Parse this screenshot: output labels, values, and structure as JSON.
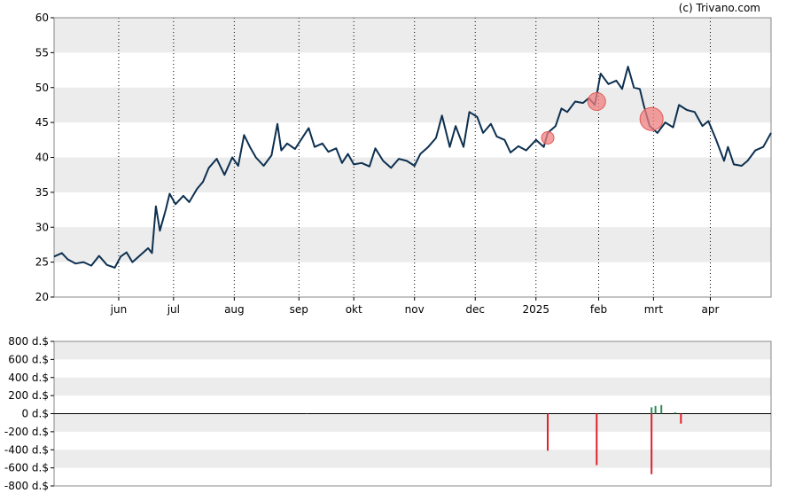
{
  "credit": "(c) Trivano.com",
  "chart_data": [
    {
      "type": "line",
      "panel": "price",
      "ylim": [
        20,
        60
      ],
      "y_ticks": [
        20,
        25,
        30,
        35,
        40,
        45,
        50,
        55,
        60
      ],
      "grid": true,
      "x_ticks": [
        {
          "label": "jun",
          "date": "2024-06-03"
        },
        {
          "label": "jul",
          "date": "2024-07-01"
        },
        {
          "label": "aug",
          "date": "2024-08-01"
        },
        {
          "label": "sep",
          "date": "2024-09-03"
        },
        {
          "label": "okt",
          "date": "2024-10-01"
        },
        {
          "label": "nov",
          "date": "2024-11-01"
        },
        {
          "label": "dec",
          "date": "2024-12-02"
        },
        {
          "label": "2025",
          "date": "2025-01-02"
        },
        {
          "label": "feb",
          "date": "2025-02-03"
        },
        {
          "label": "mrt",
          "date": "2025-03-03"
        },
        {
          "label": "apr",
          "date": "2025-04-01"
        }
      ],
      "xlim": [
        "2024-05-01",
        "2025-05-02"
      ],
      "series": [
        {
          "color": "#0d3050",
          "points": [
            [
              "2024-05-01",
              25.8
            ],
            [
              "2024-05-05",
              26.3
            ],
            [
              "2024-05-08",
              25.4
            ],
            [
              "2024-05-12",
              24.8
            ],
            [
              "2024-05-16",
              25.0
            ],
            [
              "2024-05-20",
              24.5
            ],
            [
              "2024-05-24",
              25.9
            ],
            [
              "2024-05-28",
              24.6
            ],
            [
              "2024-06-01",
              24.2
            ],
            [
              "2024-06-04",
              25.8
            ],
            [
              "2024-06-07",
              26.4
            ],
            [
              "2024-06-10",
              25.0
            ],
            [
              "2024-06-14",
              26.0
            ],
            [
              "2024-06-18",
              27.0
            ],
            [
              "2024-06-20",
              26.3
            ],
            [
              "2024-06-22",
              33.0
            ],
            [
              "2024-06-24",
              29.5
            ],
            [
              "2024-06-27",
              32.5
            ],
            [
              "2024-06-29",
              34.8
            ],
            [
              "2024-07-02",
              33.3
            ],
            [
              "2024-07-06",
              34.5
            ],
            [
              "2024-07-09",
              33.6
            ],
            [
              "2024-07-13",
              35.5
            ],
            [
              "2024-07-16",
              36.5
            ],
            [
              "2024-07-19",
              38.5
            ],
            [
              "2024-07-23",
              39.8
            ],
            [
              "2024-07-27",
              37.5
            ],
            [
              "2024-07-31",
              40.0
            ],
            [
              "2024-08-03",
              38.8
            ],
            [
              "2024-08-06",
              43.2
            ],
            [
              "2024-08-09",
              41.5
            ],
            [
              "2024-08-12",
              40.0
            ],
            [
              "2024-08-16",
              38.8
            ],
            [
              "2024-08-20",
              40.3
            ],
            [
              "2024-08-23",
              44.8
            ],
            [
              "2024-08-25",
              41.0
            ],
            [
              "2024-08-28",
              42.0
            ],
            [
              "2024-09-01",
              41.2
            ],
            [
              "2024-09-04",
              42.5
            ],
            [
              "2024-09-08",
              44.2
            ],
            [
              "2024-09-11",
              41.5
            ],
            [
              "2024-09-15",
              42.0
            ],
            [
              "2024-09-18",
              40.8
            ],
            [
              "2024-09-22",
              41.3
            ],
            [
              "2024-09-25",
              39.2
            ],
            [
              "2024-09-28",
              40.5
            ],
            [
              "2024-10-01",
              39.0
            ],
            [
              "2024-10-05",
              39.2
            ],
            [
              "2024-10-09",
              38.7
            ],
            [
              "2024-10-12",
              41.3
            ],
            [
              "2024-10-16",
              39.5
            ],
            [
              "2024-10-20",
              38.5
            ],
            [
              "2024-10-24",
              39.8
            ],
            [
              "2024-10-28",
              39.5
            ],
            [
              "2024-11-01",
              38.8
            ],
            [
              "2024-11-04",
              40.5
            ],
            [
              "2024-11-08",
              41.5
            ],
            [
              "2024-11-12",
              42.8
            ],
            [
              "2024-11-15",
              46.0
            ],
            [
              "2024-11-19",
              41.5
            ],
            [
              "2024-11-22",
              44.5
            ],
            [
              "2024-11-26",
              41.5
            ],
            [
              "2024-11-29",
              46.5
            ],
            [
              "2024-12-03",
              45.8
            ],
            [
              "2024-12-06",
              43.5
            ],
            [
              "2024-12-10",
              44.8
            ],
            [
              "2024-12-13",
              43.0
            ],
            [
              "2024-12-17",
              42.5
            ],
            [
              "2024-12-20",
              40.7
            ],
            [
              "2024-12-24",
              41.6
            ],
            [
              "2024-12-28",
              41.0
            ],
            [
              "2025-01-02",
              42.5
            ],
            [
              "2025-01-06",
              41.5
            ],
            [
              "2025-01-08",
              43.5
            ],
            [
              "2025-01-12",
              44.5
            ],
            [
              "2025-01-15",
              47.0
            ],
            [
              "2025-01-18",
              46.5
            ],
            [
              "2025-01-22",
              48.0
            ],
            [
              "2025-01-26",
              47.8
            ],
            [
              "2025-01-29",
              48.5
            ],
            [
              "2025-02-01",
              47.5
            ],
            [
              "2025-02-04",
              52.0
            ],
            [
              "2025-02-08",
              50.5
            ],
            [
              "2025-02-12",
              51.0
            ],
            [
              "2025-02-15",
              49.8
            ],
            [
              "2025-02-18",
              53.0
            ],
            [
              "2025-02-21",
              50.0
            ],
            [
              "2025-02-24",
              49.8
            ],
            [
              "2025-02-26",
              47.5
            ],
            [
              "2025-03-01",
              44.5
            ],
            [
              "2025-03-05",
              43.5
            ],
            [
              "2025-03-09",
              45.0
            ],
            [
              "2025-03-13",
              44.3
            ],
            [
              "2025-03-16",
              47.5
            ],
            [
              "2025-03-20",
              46.8
            ],
            [
              "2025-03-24",
              46.5
            ],
            [
              "2025-03-28",
              44.5
            ],
            [
              "2025-03-31",
              45.2
            ],
            [
              "2025-04-04",
              42.5
            ],
            [
              "2025-04-08",
              39.5
            ],
            [
              "2025-04-10",
              41.5
            ],
            [
              "2025-04-13",
              39.0
            ],
            [
              "2025-04-17",
              38.8
            ],
            [
              "2025-04-20",
              39.5
            ],
            [
              "2025-04-24",
              41.0
            ],
            [
              "2025-04-28",
              41.5
            ],
            [
              "2025-05-02",
              43.5
            ]
          ]
        }
      ],
      "markers": [
        {
          "date": "2025-01-08",
          "value": 42.8,
          "size": "small",
          "color": "#f08080"
        },
        {
          "date": "2025-02-02",
          "value": 48.0,
          "size": "medium",
          "color": "#f08080"
        },
        {
          "date": "2025-03-02",
          "value": 45.5,
          "size": "large",
          "color": "#f08080"
        }
      ]
    },
    {
      "type": "bar",
      "panel": "volume",
      "ylim": [
        -800,
        800
      ],
      "y_ticks": [
        {
          "value": 800,
          "label": "800 d.$"
        },
        {
          "value": 600,
          "label": "600 d.$"
        },
        {
          "value": 400,
          "label": "400 d.$"
        },
        {
          "value": 200,
          "label": "200 d.$"
        },
        {
          "value": 0,
          "label": "0 d.$"
        },
        {
          "value": -200,
          "label": "-200 d.$"
        },
        {
          "value": -400,
          "label": "-400 d.$"
        },
        {
          "value": -600,
          "label": "-600 d.$"
        },
        {
          "value": -800,
          "label": "-800 d.$"
        }
      ],
      "grid": true,
      "positive_color": "#2e8b57",
      "negative_color": "#e0202a",
      "bars": [
        {
          "date": "2024-09-07",
          "value": 3
        },
        {
          "date": "2025-01-08",
          "value": -410
        },
        {
          "date": "2025-02-02",
          "value": -570
        },
        {
          "date": "2025-03-02",
          "value": -670
        },
        {
          "date": "2025-03-02",
          "value": 70
        },
        {
          "date": "2025-03-04",
          "value": 85
        },
        {
          "date": "2025-03-07",
          "value": 95
        },
        {
          "date": "2025-03-14",
          "value": 15
        },
        {
          "date": "2025-03-17",
          "value": -110
        }
      ]
    }
  ]
}
